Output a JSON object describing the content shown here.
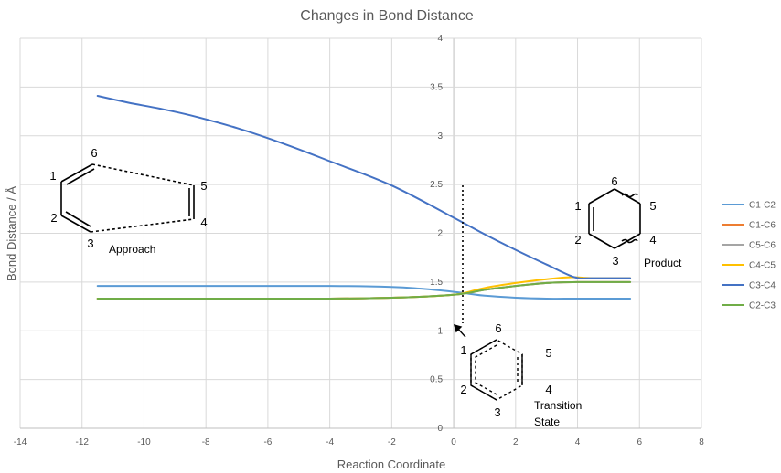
{
  "chart_data": {
    "type": "line",
    "title": "Changes in Bond Distance",
    "xlabel": "Reaction Coordinate",
    "ylabel": "Bond Distance / Å",
    "xlim": [
      -14,
      8
    ],
    "ylim": [
      0,
      4
    ],
    "x_ticks": [
      "-14",
      "-12",
      "-10",
      "-8",
      "-6",
      "-4",
      "-2",
      "0",
      "2",
      "4",
      "6",
      "8"
    ],
    "y_ticks": [
      "0",
      "0.5",
      "1",
      "1.5",
      "2",
      "2.5",
      "3",
      "3.5",
      "4"
    ],
    "grid": true,
    "legend_position": "right",
    "series": [
      {
        "name": "C1-C2",
        "color": "#5B9BD5",
        "points": [
          [
            -11.5,
            1.46
          ],
          [
            -8,
            1.46
          ],
          [
            -4,
            1.46
          ],
          [
            -2,
            1.45
          ],
          [
            -1,
            1.43
          ],
          [
            0,
            1.4
          ],
          [
            0.5,
            1.38
          ],
          [
            1,
            1.36
          ],
          [
            2,
            1.34
          ],
          [
            3,
            1.33
          ],
          [
            4,
            1.33
          ],
          [
            5.7,
            1.33
          ]
        ]
      },
      {
        "name": "C1-C6",
        "color": "#ED7D31",
        "points": [
          [
            -11.5,
            1.33
          ],
          [
            -8,
            1.33
          ],
          [
            -4,
            1.33
          ],
          [
            -2,
            1.34
          ],
          [
            -1,
            1.35
          ],
          [
            0,
            1.37
          ],
          [
            0.5,
            1.39
          ],
          [
            1,
            1.42
          ],
          [
            2,
            1.46
          ],
          [
            3,
            1.49
          ],
          [
            4,
            1.5
          ],
          [
            5.7,
            1.5
          ]
        ]
      },
      {
        "name": "C5-C6",
        "color": "#A5A5A5",
        "points": [
          [
            -11.5,
            1.33
          ],
          [
            -8,
            1.33
          ],
          [
            -4,
            1.33
          ],
          [
            -2,
            1.34
          ],
          [
            -1,
            1.35
          ],
          [
            0,
            1.37
          ],
          [
            0.5,
            1.39
          ],
          [
            1,
            1.42
          ],
          [
            2,
            1.46
          ],
          [
            3,
            1.49
          ],
          [
            4,
            1.5
          ],
          [
            5.7,
            1.5
          ]
        ]
      },
      {
        "name": "C4-C5",
        "color": "#FFC000",
        "points": [
          [
            -11.5,
            1.33
          ],
          [
            -8,
            1.33
          ],
          [
            -4,
            1.33
          ],
          [
            -2,
            1.34
          ],
          [
            -1,
            1.35
          ],
          [
            0,
            1.37
          ],
          [
            0.5,
            1.4
          ],
          [
            1,
            1.44
          ],
          [
            2,
            1.49
          ],
          [
            3,
            1.53
          ],
          [
            3.8,
            1.55
          ],
          [
            4.5,
            1.54
          ],
          [
            5.7,
            1.54
          ]
        ]
      },
      {
        "name": "C3-C4",
        "color": "#4472C4",
        "points": [
          [
            -11.5,
            3.41
          ],
          [
            -10.5,
            3.34
          ],
          [
            -9.5,
            3.28
          ],
          [
            -8.5,
            3.21
          ],
          [
            -7,
            3.08
          ],
          [
            -5.5,
            2.92
          ],
          [
            -4,
            2.74
          ],
          [
            -2,
            2.49
          ],
          [
            0,
            2.16
          ],
          [
            1,
            1.99
          ],
          [
            2,
            1.83
          ],
          [
            3,
            1.68
          ],
          [
            3.9,
            1.55
          ],
          [
            4.5,
            1.54
          ],
          [
            5.7,
            1.54
          ]
        ]
      },
      {
        "name": "C2-C3",
        "color": "#70AD47",
        "points": [
          [
            -11.5,
            1.33
          ],
          [
            -8,
            1.33
          ],
          [
            -4,
            1.33
          ],
          [
            -2,
            1.34
          ],
          [
            -1,
            1.35
          ],
          [
            0,
            1.37
          ],
          [
            0.5,
            1.39
          ],
          [
            1,
            1.42
          ],
          [
            2,
            1.46
          ],
          [
            3,
            1.49
          ],
          [
            4,
            1.5
          ],
          [
            5.7,
            1.5
          ]
        ]
      }
    ],
    "annotations": {
      "approach": {
        "label": "Approach",
        "atoms": [
          "1",
          "2",
          "3",
          "4",
          "5",
          "6"
        ]
      },
      "product": {
        "label": "Product",
        "atoms": [
          "1",
          "2",
          "3",
          "4",
          "5",
          "6"
        ]
      },
      "transition": {
        "label_line1": "Transition",
        "label_line2": "State",
        "atoms": [
          "1",
          "2",
          "3",
          "4",
          "5",
          "6"
        ]
      }
    }
  }
}
